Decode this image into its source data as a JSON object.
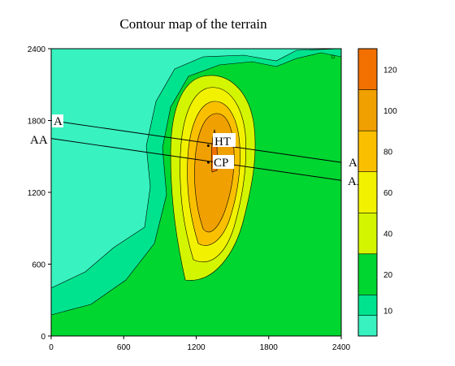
{
  "chart_data": {
    "type": "contour",
    "title": "Contour map of the terrain",
    "xlabel": "",
    "ylabel": "",
    "xlim": [
      0,
      2400
    ],
    "ylim": [
      0,
      2400
    ],
    "x_ticks": [
      0,
      600,
      1200,
      1800,
      2400
    ],
    "y_ticks": [
      0,
      600,
      1200,
      1800,
      2400
    ],
    "levels": [
      10,
      20,
      40,
      60,
      80,
      100,
      120
    ],
    "colorbar": {
      "range": [
        0,
        140
      ],
      "labels": [
        "10",
        "20",
        "40",
        "60",
        "80",
        "100",
        "120"
      ],
      "colors": [
        "#38f2c0",
        "#00e38e",
        "#00d630",
        "#d4f500",
        "#f2f200",
        "#fac000",
        "#f0a000",
        "#f27000"
      ]
    },
    "terrain": {
      "base_level": 10,
      "peak": {
        "x": 1320,
        "y": 1450,
        "value": 125
      },
      "low_region": "upper-left and lower-left"
    },
    "profile_lines": [
      {
        "name": "A",
        "x1": 0,
        "y1": 1800,
        "x2": 2400,
        "y2": 1450
      },
      {
        "name": "AA",
        "x1": 0,
        "y1": 1650,
        "x2": 2400,
        "y2": 1300
      }
    ],
    "points": [
      {
        "name": "HT",
        "x": 1300,
        "y": 1590
      },
      {
        "name": "CP",
        "x": 1300,
        "y": 1450
      }
    ],
    "annotations": {
      "A_left": "A",
      "A_right": "A",
      "AA_left": "AA",
      "AA_right": "AA",
      "HT": "HT",
      "CP": "CP"
    }
  }
}
